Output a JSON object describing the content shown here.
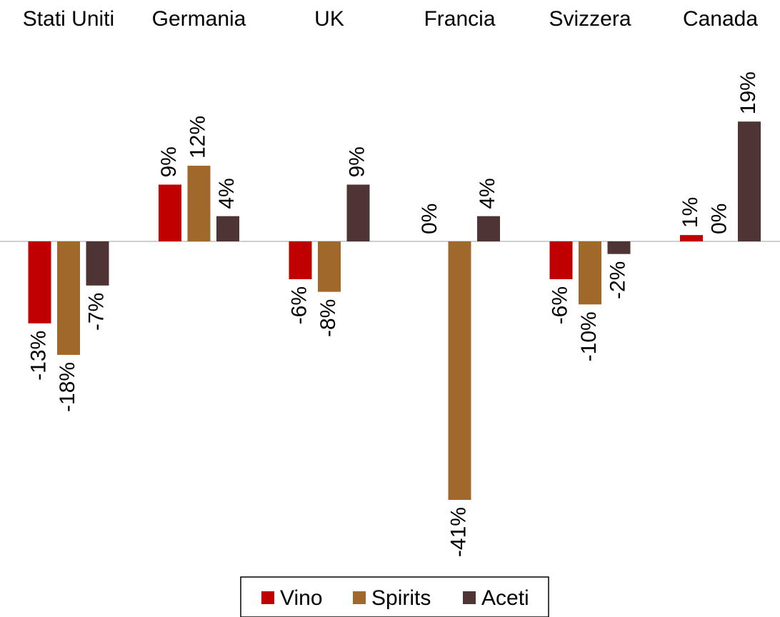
{
  "chart_data": {
    "type": "bar",
    "categories": [
      "Stati Uniti",
      "Germania",
      "UK",
      "Francia",
      "Svizzera",
      "Canada"
    ],
    "series": [
      {
        "name": "Vino",
        "color": "#c00000",
        "values": [
          -13,
          9,
          -6,
          0,
          -6,
          1
        ],
        "value_labels": [
          "-13%",
          "9%",
          "-6%",
          "0%",
          "-6%",
          "1%"
        ]
      },
      {
        "name": "Spirits",
        "color": "#a0692b",
        "values": [
          -18,
          12,
          -8,
          -41,
          -10,
          0
        ],
        "value_labels": [
          "-18%",
          "12%",
          "-8%",
          "-41%",
          "-10%",
          "0%"
        ]
      },
      {
        "name": "Aceti",
        "color": "#4e3434",
        "values": [
          -7,
          4,
          9,
          4,
          -2,
          19
        ],
        "value_labels": [
          "-7%",
          "4%",
          "9%",
          "4%",
          "-2%",
          "19%"
        ]
      }
    ],
    "legend": "bottom"
  }
}
